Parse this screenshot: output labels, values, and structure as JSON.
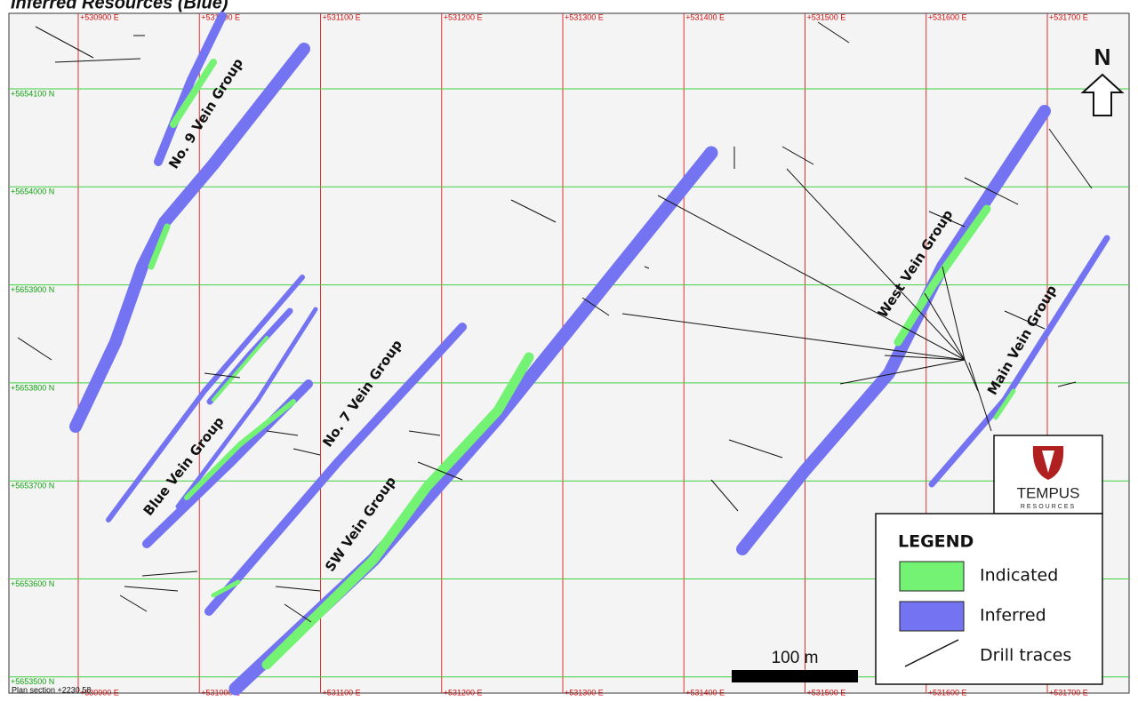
{
  "title": "Inferred Resources (Blue)",
  "grid": {
    "eastings": [
      {
        "value": 530900,
        "label": "+530900 E"
      },
      {
        "value": 531000,
        "label": "+531000 E"
      },
      {
        "value": 531100,
        "label": "+531100 E"
      },
      {
        "value": 531200,
        "label": "+531200 E"
      },
      {
        "value": 531300,
        "label": "+531300 E"
      },
      {
        "value": 531400,
        "label": "+531400 E"
      },
      {
        "value": 531500,
        "label": "+531500 E"
      },
      {
        "value": 531600,
        "label": "+531600 E"
      },
      {
        "value": 531700,
        "label": "+531700 E"
      }
    ],
    "northings": [
      {
        "value": 5654100,
        "label": "+5654100 N"
      },
      {
        "value": 5654000,
        "label": "+5654000 N"
      },
      {
        "value": 5653900,
        "label": "+5653900 N"
      },
      {
        "value": 5653800,
        "label": "+5653800 N"
      },
      {
        "value": 5653700,
        "label": "+5653700 N"
      },
      {
        "value": 5653600,
        "label": "+5653600 N"
      },
      {
        "value": 5653500,
        "label": "+5653500 N"
      }
    ]
  },
  "vein_groups": [
    "No. 9 Vein Group",
    "Blue Vein Group",
    "No. 7 Vein Group",
    "SW Vein Group",
    "West Vein Group",
    "Main Vein Group"
  ],
  "north_arrow": "N",
  "legend": {
    "title": "LEGEND",
    "items": [
      {
        "label": "Indicated",
        "color": "#74f274"
      },
      {
        "label": "Inferred",
        "color": "#7474f2"
      },
      {
        "label": "Drill traces"
      }
    ]
  },
  "scale_bar": "100 m",
  "plan_section": "Plan section +2230.58",
  "logo": {
    "name": "TEMPUS",
    "subtitle": "RESOURCES"
  }
}
